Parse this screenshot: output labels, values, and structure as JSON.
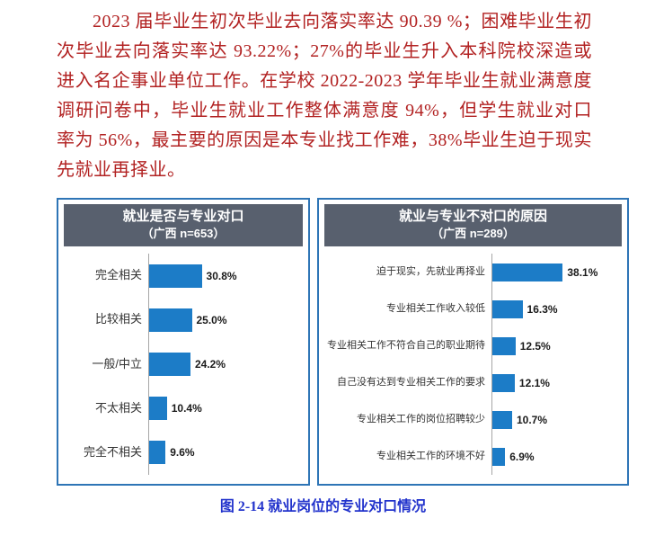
{
  "page": {
    "paragraph": "2023 届毕业生初次毕业去向落实率达 90.39 %；困难毕业生初次毕业去向落实率达 93.22%；27%的毕业生升入本科院校深造或进入名企事业单位工作。在学校 2022-2023 学年毕业生就业满意度调研问卷中，毕业生就业工作整体满意度 94%，但学生就业对口率为 56%，最主要的原因是本专业找工作难，38%毕业生迫于现实先就业再择业。",
    "caption": "图 2-14 就业岗位的专业对口情况"
  },
  "colors": {
    "paragraph_text": "#B22222",
    "caption_text": "#2233CC",
    "bar_fill": "#1C7CC7",
    "chart_border": "#2E75B6",
    "header_bg": "#58606E",
    "header_text": "#FFFFFF",
    "axis_line": "#A6A6A6"
  },
  "chart_data": [
    {
      "type": "bar",
      "orientation": "horizontal",
      "title": "就业是否与专业对口",
      "subtitle": "（广西 n=653）",
      "categories": [
        "完全相关",
        "比较相关",
        "一般/中立",
        "不太相关",
        "完全不相关"
      ],
      "values": [
        30.8,
        25.0,
        24.2,
        10.4,
        9.6
      ],
      "value_labels": [
        "30.8%",
        "25.0%",
        "24.2%",
        "10.4%",
        "9.6%"
      ],
      "xlim": [
        0,
        90
      ],
      "unit": "%",
      "grid": false,
      "legend": "none"
    },
    {
      "type": "bar",
      "orientation": "horizontal",
      "title": "就业与专业不对口的原因",
      "subtitle": "（广西 n=289）",
      "categories": [
        "迫于现实，先就业再择业",
        "专业相关工作收入较低",
        "专业相关工作不符合自己的职业期待",
        "自己没有达到专业相关工作的要求",
        "专业相关工作的岗位招聘较少",
        "专业相关工作的环境不好"
      ],
      "values": [
        38.1,
        16.3,
        12.5,
        12.1,
        10.7,
        6.9
      ],
      "value_labels": [
        "38.1%",
        "16.3%",
        "12.5%",
        "12.1%",
        "10.7%",
        "6.9%"
      ],
      "xlim": [
        0,
        70
      ],
      "unit": "%",
      "grid": false,
      "legend": "none"
    }
  ]
}
